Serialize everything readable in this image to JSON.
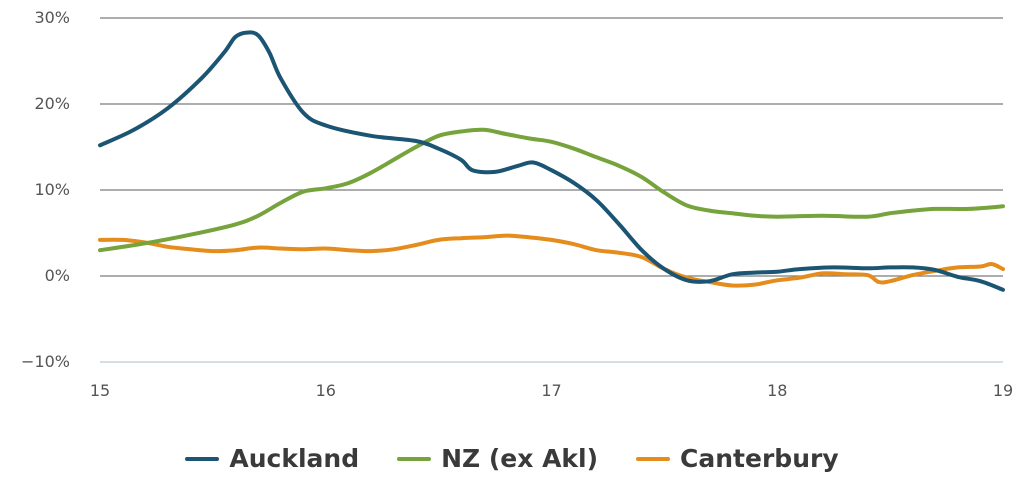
{
  "chart_data": {
    "type": "line",
    "title": "",
    "xlabel": "",
    "ylabel": "",
    "xlim": [
      15,
      19
    ],
    "ylim": [
      -10,
      30
    ],
    "x_ticks": [
      "15",
      "16",
      "17",
      "18",
      "19"
    ],
    "y_ticks": [
      "30%",
      "20%",
      "10%",
      "0%",
      "−10%"
    ],
    "grid": true,
    "legend_position": "bottom",
    "series": [
      {
        "name": "Auckland",
        "color": "#1b5573",
        "points": [
          [
            15.0,
            15.2
          ],
          [
            15.15,
            17.0
          ],
          [
            15.3,
            19.5
          ],
          [
            15.45,
            23.0
          ],
          [
            15.55,
            26.0
          ],
          [
            15.6,
            27.8
          ],
          [
            15.65,
            28.3
          ],
          [
            15.7,
            28.0
          ],
          [
            15.75,
            26.0
          ],
          [
            15.8,
            23.0
          ],
          [
            15.9,
            19.0
          ],
          [
            16.0,
            17.5
          ],
          [
            16.2,
            16.3
          ],
          [
            16.4,
            15.7
          ],
          [
            16.5,
            14.8
          ],
          [
            16.6,
            13.5
          ],
          [
            16.65,
            12.3
          ],
          [
            16.75,
            12.1
          ],
          [
            16.85,
            12.8
          ],
          [
            16.92,
            13.2
          ],
          [
            17.0,
            12.3
          ],
          [
            17.1,
            10.8
          ],
          [
            17.2,
            8.8
          ],
          [
            17.3,
            6.0
          ],
          [
            17.4,
            3.0
          ],
          [
            17.5,
            0.8
          ],
          [
            17.6,
            -0.5
          ],
          [
            17.7,
            -0.6
          ],
          [
            17.8,
            0.2
          ],
          [
            17.9,
            0.4
          ],
          [
            18.0,
            0.5
          ],
          [
            18.1,
            0.8
          ],
          [
            18.25,
            1.0
          ],
          [
            18.4,
            0.9
          ],
          [
            18.5,
            1.0
          ],
          [
            18.6,
            1.0
          ],
          [
            18.7,
            0.7
          ],
          [
            18.8,
            -0.1
          ],
          [
            18.9,
            -0.6
          ],
          [
            19.0,
            -1.6
          ]
        ]
      },
      {
        "name": "NZ (ex Akl)",
        "color": "#76a33c",
        "points": [
          [
            15.0,
            3.0
          ],
          [
            15.2,
            3.8
          ],
          [
            15.4,
            4.8
          ],
          [
            15.6,
            6.0
          ],
          [
            15.7,
            7.0
          ],
          [
            15.8,
            8.5
          ],
          [
            15.9,
            9.8
          ],
          [
            16.0,
            10.2
          ],
          [
            16.1,
            10.8
          ],
          [
            16.2,
            12.0
          ],
          [
            16.3,
            13.5
          ],
          [
            16.4,
            15.0
          ],
          [
            16.5,
            16.3
          ],
          [
            16.6,
            16.8
          ],
          [
            16.7,
            17.0
          ],
          [
            16.8,
            16.5
          ],
          [
            16.9,
            16.0
          ],
          [
            17.0,
            15.6
          ],
          [
            17.1,
            14.8
          ],
          [
            17.2,
            13.8
          ],
          [
            17.3,
            12.8
          ],
          [
            17.4,
            11.5
          ],
          [
            17.5,
            9.7
          ],
          [
            17.6,
            8.2
          ],
          [
            17.7,
            7.6
          ],
          [
            17.8,
            7.3
          ],
          [
            17.9,
            7.0
          ],
          [
            18.0,
            6.9
          ],
          [
            18.2,
            7.0
          ],
          [
            18.4,
            6.9
          ],
          [
            18.5,
            7.3
          ],
          [
            18.6,
            7.6
          ],
          [
            18.7,
            7.8
          ],
          [
            18.85,
            7.8
          ],
          [
            19.0,
            8.1
          ]
        ]
      },
      {
        "name": "Canterbury",
        "color": "#e48c1c",
        "points": [
          [
            15.0,
            4.2
          ],
          [
            15.1,
            4.2
          ],
          [
            15.2,
            3.9
          ],
          [
            15.3,
            3.4
          ],
          [
            15.4,
            3.1
          ],
          [
            15.5,
            2.9
          ],
          [
            15.6,
            3.0
          ],
          [
            15.7,
            3.3
          ],
          [
            15.8,
            3.2
          ],
          [
            15.9,
            3.1
          ],
          [
            16.0,
            3.2
          ],
          [
            16.1,
            3.0
          ],
          [
            16.2,
            2.9
          ],
          [
            16.3,
            3.1
          ],
          [
            16.4,
            3.6
          ],
          [
            16.5,
            4.2
          ],
          [
            16.6,
            4.4
          ],
          [
            16.7,
            4.5
          ],
          [
            16.8,
            4.7
          ],
          [
            16.9,
            4.5
          ],
          [
            17.0,
            4.2
          ],
          [
            17.1,
            3.7
          ],
          [
            17.2,
            3.0
          ],
          [
            17.3,
            2.7
          ],
          [
            17.4,
            2.2
          ],
          [
            17.5,
            0.8
          ],
          [
            17.6,
            -0.2
          ],
          [
            17.7,
            -0.7
          ],
          [
            17.8,
            -1.1
          ],
          [
            17.9,
            -1.0
          ],
          [
            18.0,
            -0.5
          ],
          [
            18.1,
            -0.2
          ],
          [
            18.2,
            0.3
          ],
          [
            18.3,
            0.2
          ],
          [
            18.4,
            0.1
          ],
          [
            18.45,
            -0.7
          ],
          [
            18.5,
            -0.6
          ],
          [
            18.6,
            0.1
          ],
          [
            18.7,
            0.6
          ],
          [
            18.8,
            1.0
          ],
          [
            18.9,
            1.1
          ],
          [
            18.95,
            1.4
          ],
          [
            19.0,
            0.8
          ]
        ]
      }
    ]
  }
}
